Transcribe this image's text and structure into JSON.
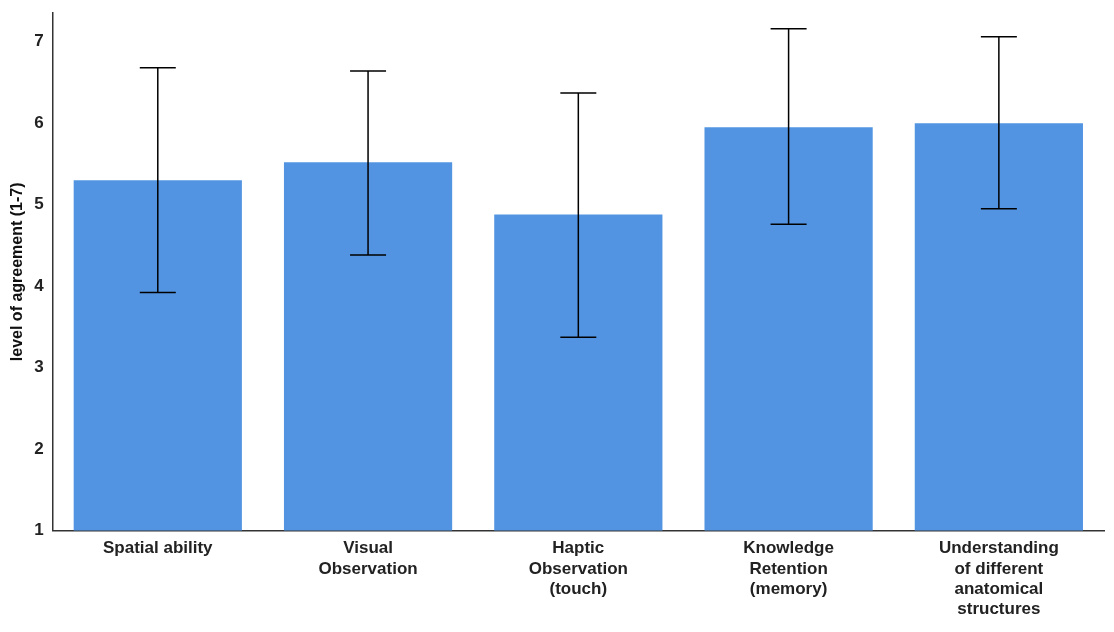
{
  "chart_data": {
    "type": "bar",
    "ylabel": "level of agreement (1-7)",
    "categories": [
      "Spatial ability",
      "Visual Observation",
      "Haptic Observation (touch)",
      "Knowledge Retention (memory)",
      "Understanding of different anatomical structures"
    ],
    "values": [
      5.3,
      5.52,
      4.88,
      5.95,
      6.0
    ],
    "errors": [
      [
        3.92,
        6.68
      ],
      [
        4.38,
        6.64
      ],
      [
        3.37,
        6.37
      ],
      [
        4.76,
        7.16
      ],
      [
        4.95,
        7.06
      ]
    ],
    "color": "#5294e2",
    "ylim": [
      1,
      7.35
    ],
    "yticks": [
      1,
      2,
      3,
      4,
      5,
      6,
      7
    ],
    "grid": false,
    "legend": false
  }
}
